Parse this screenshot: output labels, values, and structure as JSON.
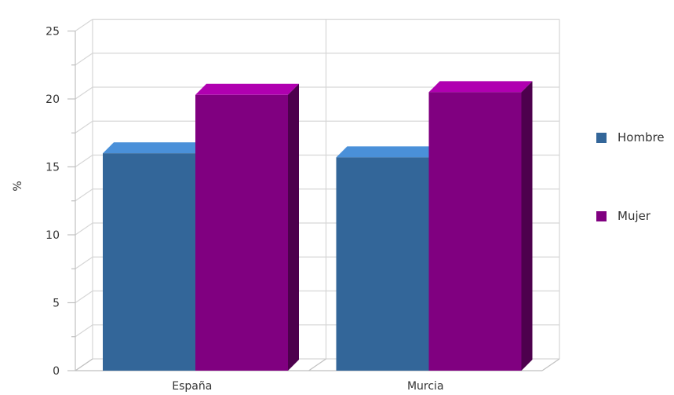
{
  "chart_data": {
    "type": "bar",
    "title": "",
    "xlabel": "",
    "ylabel": "%",
    "ylim": [
      0,
      25
    ],
    "yticks": [
      0,
      5,
      10,
      15,
      20,
      25
    ],
    "categories": [
      "España",
      "Murcia"
    ],
    "series": [
      {
        "name": "Hombre",
        "values": [
          16.0,
          15.7
        ],
        "color": "#336699",
        "top_color": "#4a90d9",
        "side_color": "#2a5580"
      },
      {
        "name": "Mujer",
        "values": [
          20.3,
          20.5
        ],
        "color": "#800080",
        "top_color": "#b000b0",
        "side_color": "#4d004d"
      }
    ],
    "grid": true,
    "legend_position": "right",
    "style": "3d"
  }
}
